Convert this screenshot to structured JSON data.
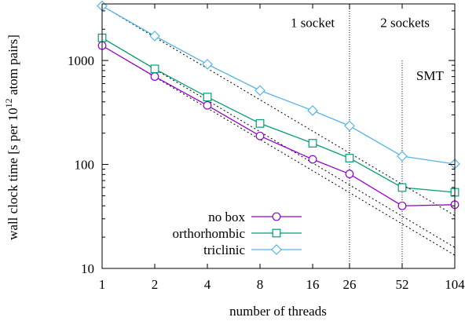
{
  "chart_data": {
    "type": "line",
    "title": "",
    "xlabel": "number of threads",
    "ylabel": "wall clock time [s per 10^12 atom pairs]",
    "ylabel_parts": {
      "before": "wall clock time [s per 10",
      "exponent": "12",
      "after": " atom pairs]"
    },
    "x_scale": "log",
    "y_scale": "log",
    "xlim": [
      1,
      104
    ],
    "ylim": [
      10,
      3500
    ],
    "x_ticks": [
      {
        "value": 1,
        "label": "1"
      },
      {
        "value": 2,
        "label": "2"
      },
      {
        "value": 4,
        "label": "4"
      },
      {
        "value": 8,
        "label": "8"
      },
      {
        "value": 16,
        "label": "16"
      },
      {
        "value": 26,
        "label": "26"
      },
      {
        "value": 52,
        "label": "52"
      },
      {
        "value": 104,
        "label": "104"
      }
    ],
    "y_ticks": [
      {
        "value": 10,
        "label": "10"
      },
      {
        "value": 100,
        "label": "100"
      },
      {
        "value": 1000,
        "label": "1000"
      }
    ],
    "grid": false,
    "legend_position": "bottom-left",
    "x": [
      1,
      2,
      4,
      8,
      16,
      26,
      52,
      104
    ],
    "series": [
      {
        "name": "no box",
        "marker": "circle",
        "color": "#9400d3",
        "values": [
          1390,
          700,
          370,
          188,
          112,
          81,
          40,
          41
        ]
      },
      {
        "name": "orthorhombic",
        "marker": "square",
        "color": "#009e73",
        "values": [
          1650,
          830,
          445,
          248,
          160,
          115,
          60,
          54
        ]
      },
      {
        "name": "triclinic",
        "marker": "diamond",
        "color": "#56b4e9",
        "values": [
          3350,
          1720,
          920,
          515,
          330,
          235,
          120,
          101
        ]
      }
    ],
    "reference_lines": [
      {
        "style": "dotted",
        "color": "#000000",
        "x": [
          1,
          104
        ],
        "values": [
          3350,
          32.2
        ]
      },
      {
        "style": "dotted",
        "color": "#000000",
        "x": [
          1,
          104
        ],
        "values": [
          1650,
          15.9
        ]
      },
      {
        "style": "dotted",
        "color": "#000000",
        "x": [
          1,
          104
        ],
        "values": [
          1390,
          13.4
        ]
      }
    ],
    "vertical_lines": [
      {
        "x": 26,
        "style": "dotted",
        "y_top": "plot-top"
      },
      {
        "x": 52,
        "style": "dotted",
        "y_top": 1000
      }
    ],
    "annotations": [
      {
        "text": "1 socket",
        "x": 16,
        "y": 2100
      },
      {
        "text": "2 sockets",
        "x": 54,
        "y": 2100
      },
      {
        "text": "SMT",
        "x": 75,
        "y": 650
      }
    ]
  }
}
